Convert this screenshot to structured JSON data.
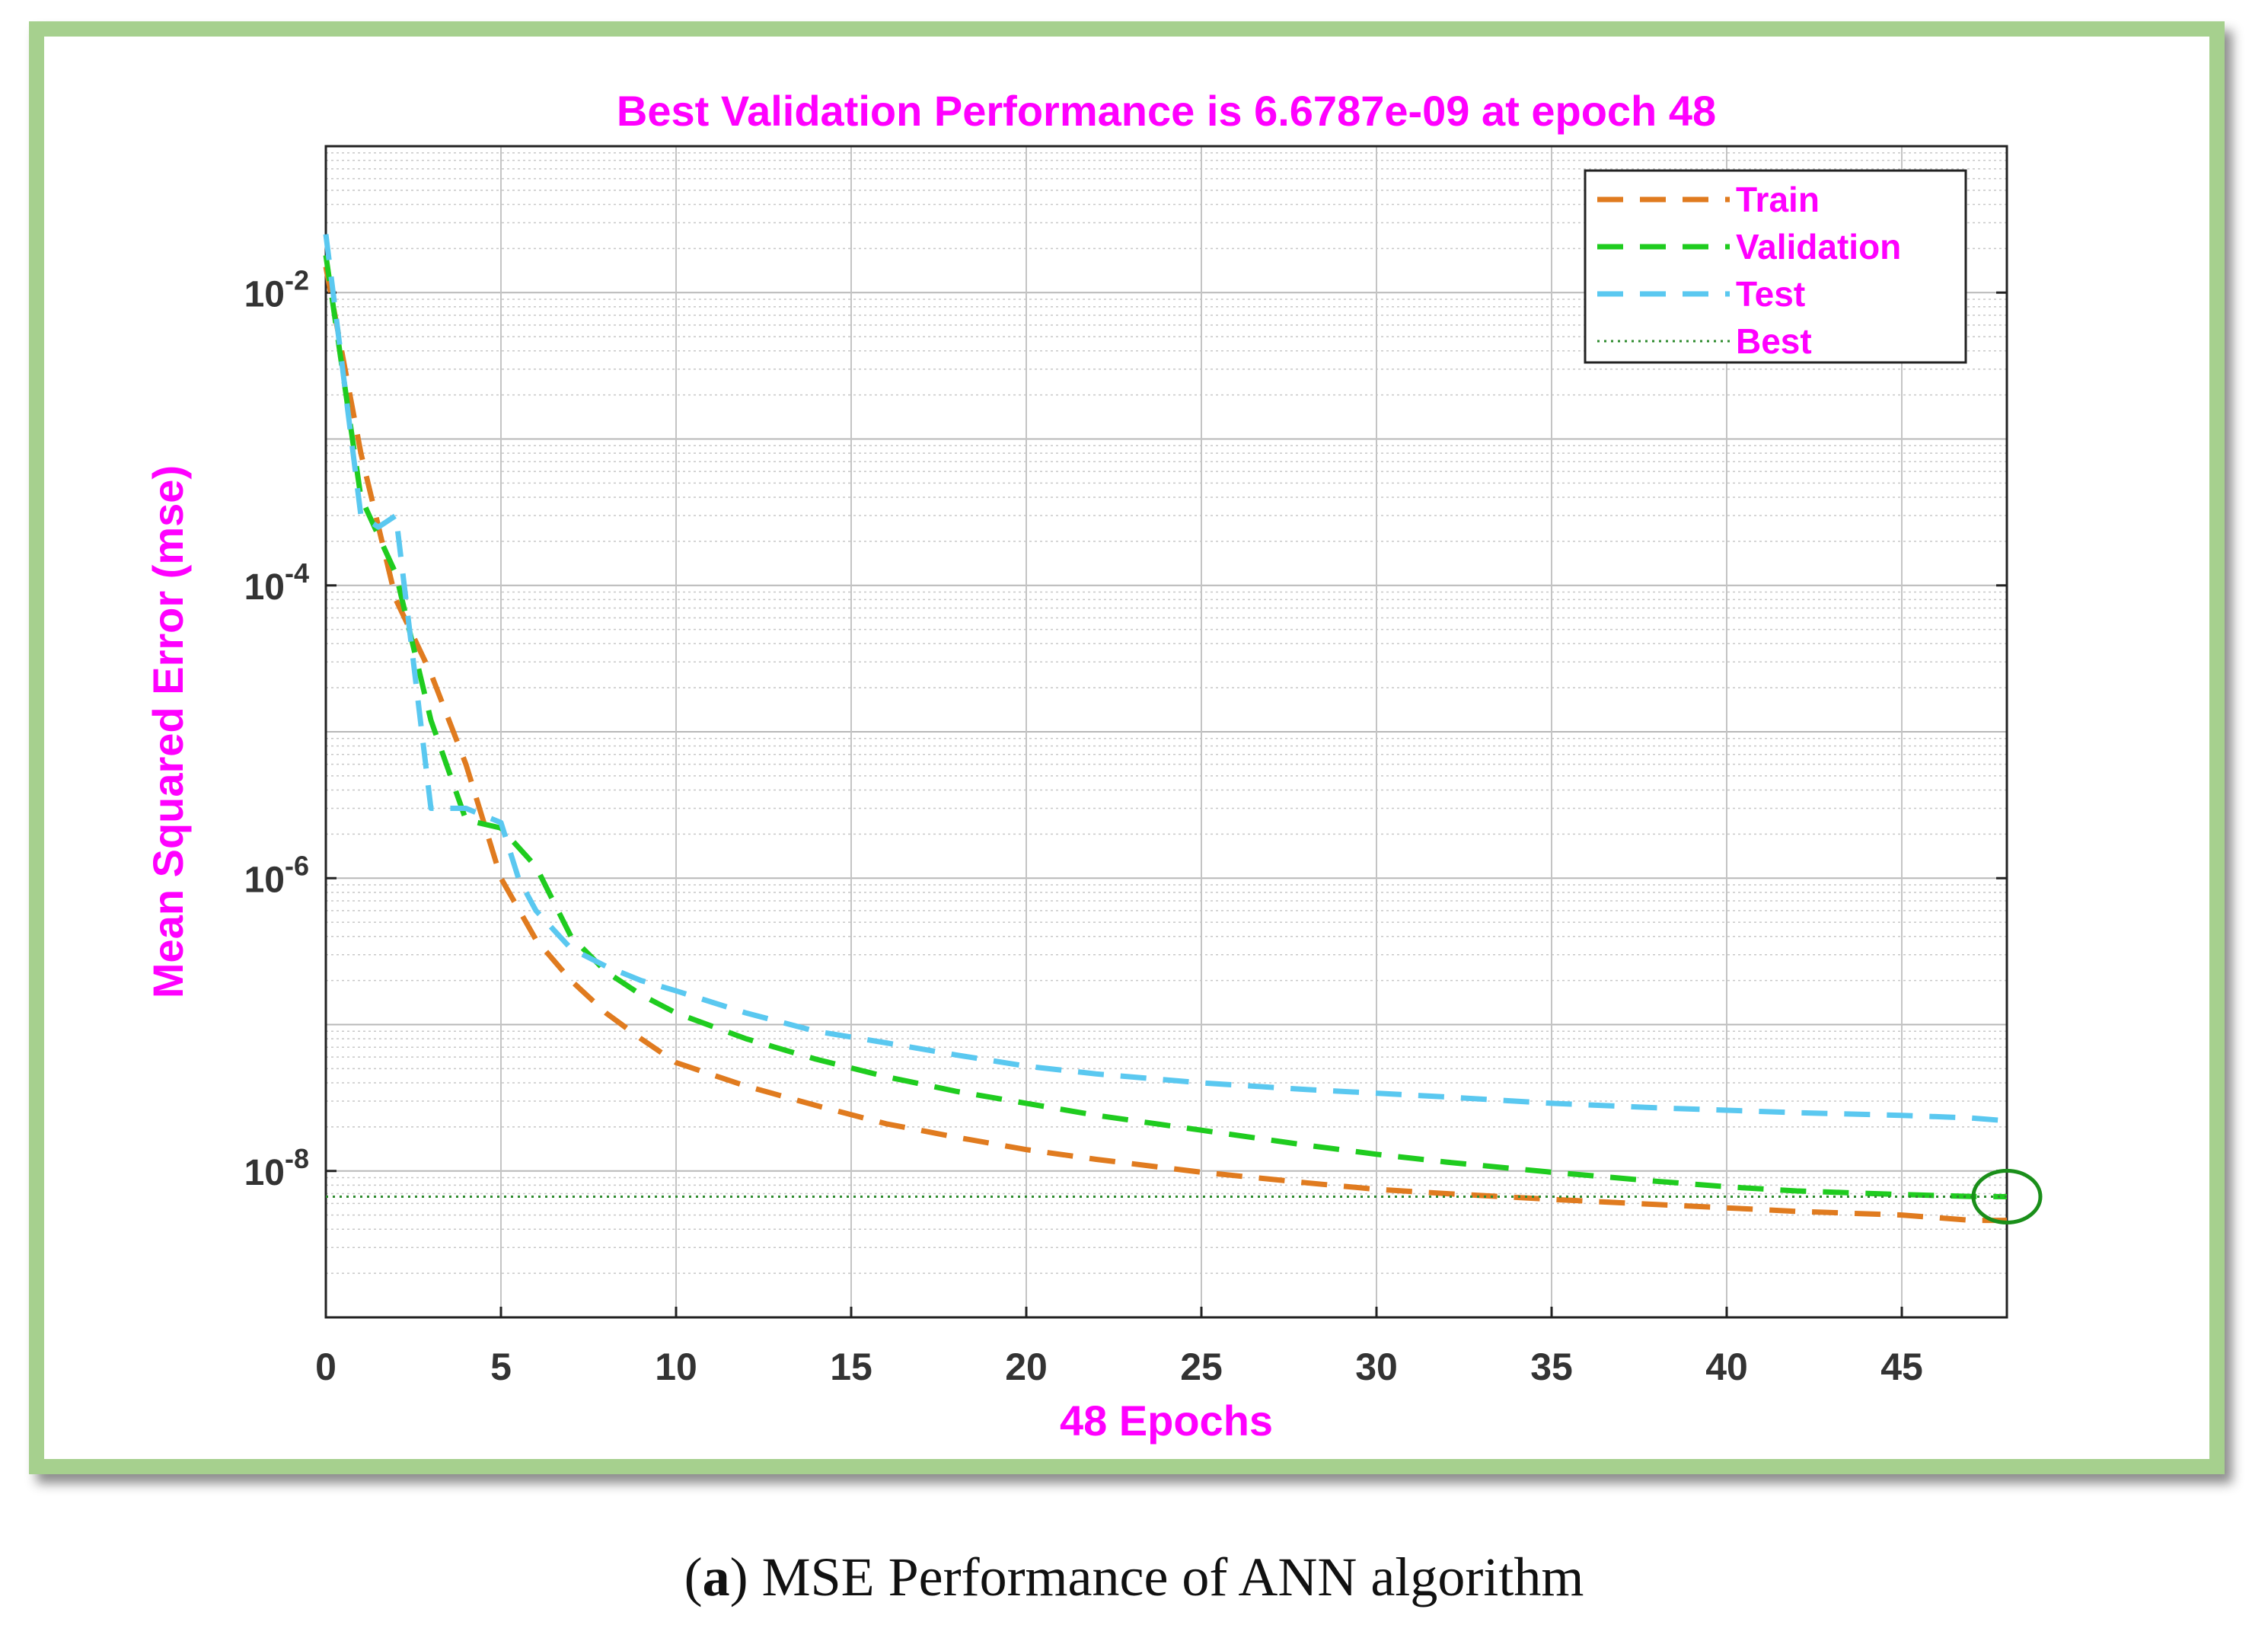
{
  "chart_data": {
    "type": "line",
    "title": "Best Validation Performance is 6.6787e-09 at epoch 48",
    "xlabel": "48 Epochs",
    "ylabel": "Mean Squared Error  (mse)",
    "xlim": [
      0,
      48
    ],
    "ylim_exponent": [
      -9,
      -1
    ],
    "yscale": "log",
    "x_ticks": [
      0,
      5,
      10,
      15,
      20,
      25,
      30,
      35,
      40,
      45
    ],
    "y_ticks": [
      {
        "base": "10",
        "exp": "-2",
        "value": 0.01
      },
      {
        "base": "10",
        "exp": "-4",
        "value": 0.0001
      },
      {
        "base": "10",
        "exp": "-6",
        "value": 1e-06
      },
      {
        "base": "10",
        "exp": "-8",
        "value": 1e-08
      }
    ],
    "grid": true,
    "legend": {
      "position": "top-right",
      "entries": [
        "Train",
        "Validation",
        "Test",
        "Best"
      ]
    },
    "series": [
      {
        "name": "Train",
        "color": "#e07b1f",
        "style": "dashed",
        "x": [
          0,
          1,
          2,
          3,
          4,
          5,
          6,
          7,
          8,
          9,
          10,
          12,
          14,
          16,
          18,
          20,
          22,
          25,
          28,
          30,
          32,
          35,
          38,
          40,
          42,
          45,
          47,
          48
        ],
        "y": [
          0.015,
          0.0008,
          8e-05,
          2.5e-05,
          6e-06,
          1e-06,
          3.8e-07,
          2e-07,
          1.2e-07,
          8e-08,
          5.5e-08,
          3.8e-08,
          2.8e-08,
          2.1e-08,
          1.7e-08,
          1.4e-08,
          1.2e-08,
          9.8e-09,
          8.3e-09,
          7.5e-09,
          7e-09,
          6.4e-09,
          5.9e-09,
          5.6e-09,
          5.3e-09,
          5e-09,
          4.6e-09,
          4.6e-09
        ]
      },
      {
        "name": "Validation",
        "color": "#1fcc1f",
        "style": "dashed",
        "x": [
          0,
          1,
          2,
          3,
          4,
          5,
          6,
          7,
          8,
          9,
          10,
          12,
          14,
          16,
          18,
          20,
          22,
          25,
          28,
          30,
          32,
          35,
          38,
          40,
          42,
          45,
          47,
          48
        ],
        "y": [
          0.018,
          0.0004,
          0.00012,
          1.2e-05,
          2.5e-06,
          2.2e-06,
          1.2e-06,
          4e-07,
          2.3e-07,
          1.6e-07,
          1.2e-07,
          8e-08,
          5.8e-08,
          4.4e-08,
          3.5e-08,
          2.9e-08,
          2.4e-08,
          1.9e-08,
          1.5e-08,
          1.3e-08,
          1.15e-08,
          9.8e-09,
          8.5e-09,
          7.8e-09,
          7.3e-09,
          6.9e-09,
          6.7e-09,
          6.6787e-09
        ]
      },
      {
        "name": "Test",
        "color": "#5ac8f0",
        "style": "dashed",
        "x": [
          0,
          1,
          1.5,
          2,
          3,
          4,
          5,
          5.5,
          6,
          7,
          8,
          9,
          10,
          12,
          14,
          16,
          18,
          20,
          22,
          25,
          28,
          30,
          32,
          35,
          38,
          40,
          42,
          45,
          47,
          48
        ],
        "y": [
          0.025,
          0.0003,
          0.00025,
          0.0003,
          3e-06,
          3e-06,
          2.4e-06,
          1e-06,
          6e-07,
          3.3e-07,
          2.5e-07,
          2e-07,
          1.7e-07,
          1.2e-07,
          9e-08,
          7.5e-08,
          6.2e-08,
          5.2e-08,
          4.6e-08,
          4e-08,
          3.6e-08,
          3.4e-08,
          3.2e-08,
          2.9e-08,
          2.7e-08,
          2.6e-08,
          2.5e-08,
          2.4e-08,
          2.3e-08,
          2.2e-08
        ]
      },
      {
        "name": "Best",
        "color": "#2e8b2e",
        "style": "dotted",
        "y_constant": 6.6787e-09
      }
    ],
    "best_marker": {
      "x": 48,
      "y": 6.6787e-09,
      "color": "#1a8f1a"
    }
  },
  "colors": {
    "title": "#ff00ff",
    "axis_text": "#333333",
    "grid": "#cccccc",
    "frame_border": "#a6d08e"
  },
  "caption": {
    "label": "a",
    "text": "MSE Performance of ANN algorithm"
  }
}
